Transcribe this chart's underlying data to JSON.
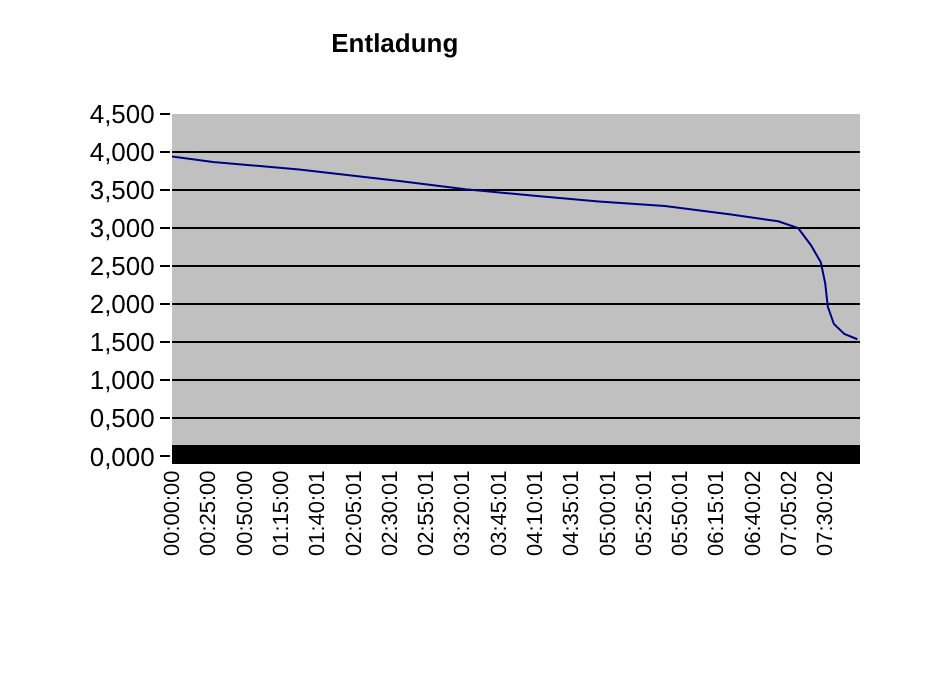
{
  "chart_data": {
    "type": "line",
    "title": "Entladung",
    "x": [
      0,
      0.47,
      1.46,
      2.61,
      3.37,
      4.13,
      4.9,
      5.66,
      6.42,
      6.96,
      7.19,
      7.34,
      7.45,
      7.5,
      7.53,
      7.6,
      7.72,
      7.87
    ],
    "series": [
      {
        "color": "#000080",
        "values": [
          3.94,
          3.87,
          3.77,
          3.62,
          3.51,
          3.43,
          3.35,
          3.29,
          3.18,
          3.09,
          3.0,
          2.77,
          2.55,
          2.28,
          1.97,
          1.74,
          1.61,
          1.54
        ]
      }
    ],
    "xlim": [
      0,
      7.9
    ],
    "ylim": [
      -0.1,
      4.5
    ],
    "xticks": [
      {
        "value": 0,
        "label": "00:00:00"
      },
      {
        "value": 0.4166667,
        "label": "00:25:00"
      },
      {
        "value": 0.8333333,
        "label": "00:50:00"
      },
      {
        "value": 1.25,
        "label": "01:15:00"
      },
      {
        "value": 1.6669444,
        "label": "01:40:01"
      },
      {
        "value": 2.0836111,
        "label": "02:05:01"
      },
      {
        "value": 2.5002778,
        "label": "02:30:01"
      },
      {
        "value": 2.9169444,
        "label": "02:55:01"
      },
      {
        "value": 3.3336111,
        "label": "03:20:01"
      },
      {
        "value": 3.7502778,
        "label": "03:45:01"
      },
      {
        "value": 4.1669444,
        "label": "04:10:01"
      },
      {
        "value": 4.5836111,
        "label": "04:35:01"
      },
      {
        "value": 5.0002778,
        "label": "05:00:01"
      },
      {
        "value": 5.4169444,
        "label": "05:25:01"
      },
      {
        "value": 5.8336111,
        "label": "05:50:01"
      },
      {
        "value": 6.2502778,
        "label": "06:15:01"
      },
      {
        "value": 6.6672222,
        "label": "06:40:02"
      },
      {
        "value": 7.0838889,
        "label": "07:05:02"
      },
      {
        "value": 7.5005556,
        "label": "07:30:02"
      }
    ],
    "yticks": [
      {
        "value": 0,
        "label": "0,000"
      },
      {
        "value": 0.5,
        "label": "0,500"
      },
      {
        "value": 1,
        "label": "1,000"
      },
      {
        "value": 1.5,
        "label": "1,500"
      },
      {
        "value": 2,
        "label": "2,000"
      },
      {
        "value": 2.5,
        "label": "2,500"
      },
      {
        "value": 3,
        "label": "3,000"
      },
      {
        "value": 3.5,
        "label": "3,500"
      },
      {
        "value": 4,
        "label": "4,000"
      },
      {
        "value": 4.5,
        "label": "4,500"
      }
    ],
    "bands": [
      {
        "axis": "y",
        "from": -0.1,
        "to": 0.15,
        "color": "#000000"
      }
    ],
    "grid": "y",
    "legend": false,
    "marker": "none",
    "line_style": "solid"
  }
}
